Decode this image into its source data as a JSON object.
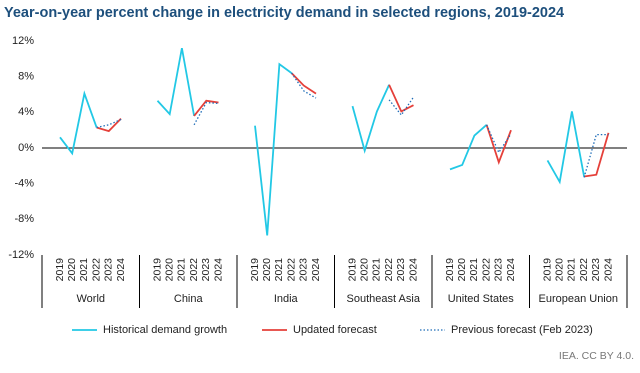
{
  "chart_data": {
    "type": "line",
    "title": "Year-on-year percent change in electricity demand in selected regions, 2019-2024",
    "source": "IEA. CC BY 4.0.",
    "categories": [
      "2019",
      "2020",
      "2021",
      "2022",
      "2023",
      "2024",
      "2019",
      "2020",
      "2021",
      "2022",
      "2023",
      "2024",
      "2019",
      "2020",
      "2021",
      "2022",
      "2023",
      "2024",
      "2019",
      "2020",
      "2021",
      "2022",
      "2023",
      "2024",
      "2019",
      "2020",
      "2021",
      "2022",
      "2023",
      "2024",
      "2019",
      "2020",
      "2021",
      "2022",
      "2023",
      "2024"
    ],
    "groups": [
      "World",
      "China",
      "India",
      "Southeast Asia",
      "United States",
      "European Union"
    ],
    "ylim": [
      -12,
      12
    ],
    "yticks": [
      {
        "value": 12,
        "label": "12%"
      },
      {
        "value": 8,
        "label": "8%"
      },
      {
        "value": 4,
        "label": "4%"
      },
      {
        "value": 0,
        "label": "0%"
      },
      {
        "value": -4,
        "label": "-4%"
      },
      {
        "value": -8,
        "label": "-8%"
      },
      {
        "value": -12,
        "label": "-12%"
      }
    ],
    "series": [
      {
        "name": "Historical demand growth",
        "color": "#22c8e5",
        "style": "solid",
        "values": [
          1.2,
          -0.6,
          6.1,
          2.3,
          null,
          null,
          5.3,
          3.8,
          11.2,
          3.6,
          null,
          null,
          2.5,
          -9.8,
          9.4,
          8.4,
          null,
          null,
          4.7,
          -0.3,
          4.1,
          7.1,
          null,
          null,
          -2.4,
          -1.9,
          1.4,
          2.6,
          null,
          null,
          -1.4,
          -3.8,
          4.1,
          -3.2,
          null,
          null
        ]
      },
      {
        "name": "Updated forecast",
        "color": "#e5403a",
        "style": "solid",
        "values": [
          null,
          null,
          null,
          2.3,
          1.9,
          3.3,
          null,
          null,
          null,
          3.6,
          5.3,
          5.1,
          null,
          null,
          null,
          8.4,
          7.0,
          6.1,
          null,
          null,
          null,
          7.1,
          4.1,
          4.8,
          null,
          null,
          null,
          2.6,
          -1.6,
          2.0,
          null,
          null,
          null,
          -3.2,
          -3.0,
          1.7
        ]
      },
      {
        "name": "Previous forecast (Feb 2023)",
        "color": "#1f6db8",
        "style": "dotted",
        "values": [
          null,
          null,
          null,
          2.3,
          2.6,
          3.2,
          null,
          null,
          null,
          2.6,
          5.1,
          5.0,
          null,
          null,
          null,
          8.4,
          6.4,
          5.6,
          null,
          null,
          null,
          5.4,
          3.7,
          5.7,
          null,
          null,
          null,
          2.6,
          -0.5,
          1.6,
          null,
          null,
          null,
          -3.3,
          1.5,
          1.5
        ]
      }
    ]
  }
}
